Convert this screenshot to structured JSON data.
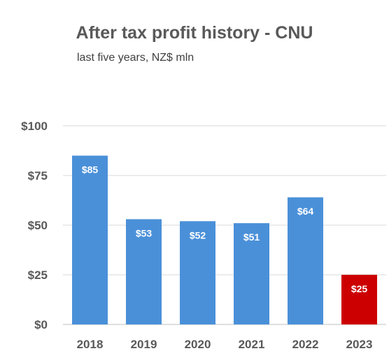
{
  "chart_data": {
    "type": "bar",
    "title": "After tax profit history - CNU",
    "subtitle": "last five years, NZ$ mln",
    "categories": [
      "2018",
      "2019",
      "2020",
      "2021",
      "2022",
      "2023"
    ],
    "values": [
      85,
      53,
      52,
      51,
      64,
      25
    ],
    "data_labels": [
      "$85",
      "$53",
      "$52",
      "$51",
      "$64",
      "$25"
    ],
    "bar_colors": [
      "#4a90d9",
      "#4a90d9",
      "#4a90d9",
      "#4a90d9",
      "#4a90d9",
      "#cc0000"
    ],
    "ylim": [
      0,
      100
    ],
    "yticks": [
      0,
      25,
      50,
      75,
      100
    ],
    "ytick_labels": [
      "$0",
      "$25",
      "$50",
      "$75",
      "$100"
    ],
    "grid": true,
    "legend": "none"
  }
}
